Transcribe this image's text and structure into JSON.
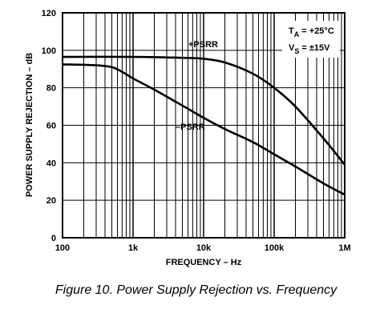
{
  "chart_data": {
    "type": "line",
    "title": "",
    "xlabel": "FREQUENCY – Hz",
    "ylabel": "POWER SUPPLY REJECTION – dB",
    "x_scale": "log",
    "xlim": [
      100,
      1000000
    ],
    "ylim": [
      0,
      120
    ],
    "x_tick_values": [
      100,
      1000,
      10000,
      100000,
      1000000
    ],
    "x_tick_labels": [
      "100",
      "1k",
      "10k",
      "100k",
      "1M"
    ],
    "y_ticks": [
      0,
      20,
      40,
      60,
      80,
      100,
      120
    ],
    "grid": true,
    "conditions": {
      "ta_prefix": "T",
      "ta_subscript": "A",
      "ta_value": " = +25°C",
      "vs_prefix": "V",
      "vs_subscript": "S",
      "vs_value": " = ±15V"
    },
    "series": [
      {
        "name": "+PSRR",
        "x": [
          100,
          1000,
          5000,
          10000,
          20000,
          50000,
          100000,
          200000,
          500000,
          1000000
        ],
        "y": [
          96.5,
          96.5,
          96,
          95.5,
          93.5,
          87.5,
          80,
          70,
          53,
          39
        ]
      },
      {
        "name": "–PSRR",
        "x": [
          100,
          300,
          500,
          700,
          1000,
          2000,
          5000,
          10000,
          20000,
          50000,
          100000,
          200000,
          500000,
          1000000
        ],
        "y": [
          92.5,
          92,
          91,
          88.5,
          85,
          79,
          70.5,
          64,
          58,
          51,
          44.5,
          38,
          29,
          23
        ]
      }
    ]
  },
  "caption": "Figure 10.  Power Supply Rejection vs. Frequency"
}
